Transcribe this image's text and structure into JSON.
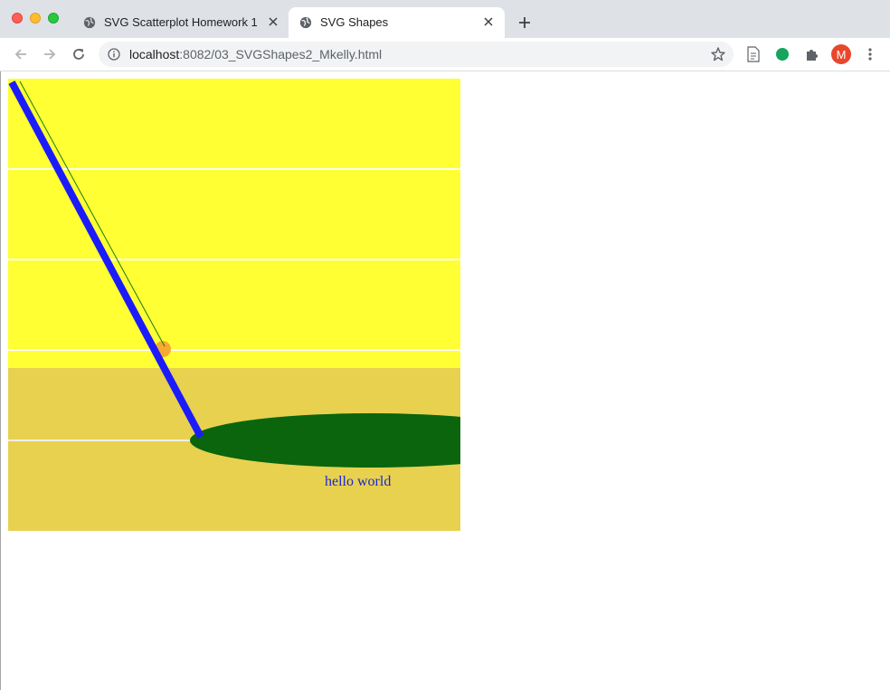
{
  "browser": {
    "window_controls": [
      "close",
      "minimize",
      "maximize"
    ],
    "tabs": [
      {
        "title": "SVG Scatterplot Homework 1",
        "active": false,
        "icon": "globe-icon"
      },
      {
        "title": "SVG Shapes",
        "active": true,
        "icon": "globe-icon"
      }
    ],
    "new_tab_icon": "plus-icon",
    "address": {
      "host": "localhost",
      "path": ":8082/03_SVGShapes2_Mkelly.html"
    },
    "profile_initial": "M"
  },
  "page": {
    "svg_text": "hello world"
  },
  "colors": {
    "sky": "#ffff33",
    "ground": "#e8d14f",
    "ellipse": "#0a650d",
    "sun": "#f8a930",
    "stick": "#1b1bfb",
    "thin_line": "#1c7a12",
    "grid_line": "#ffffff",
    "text": "#1a27d6"
  }
}
